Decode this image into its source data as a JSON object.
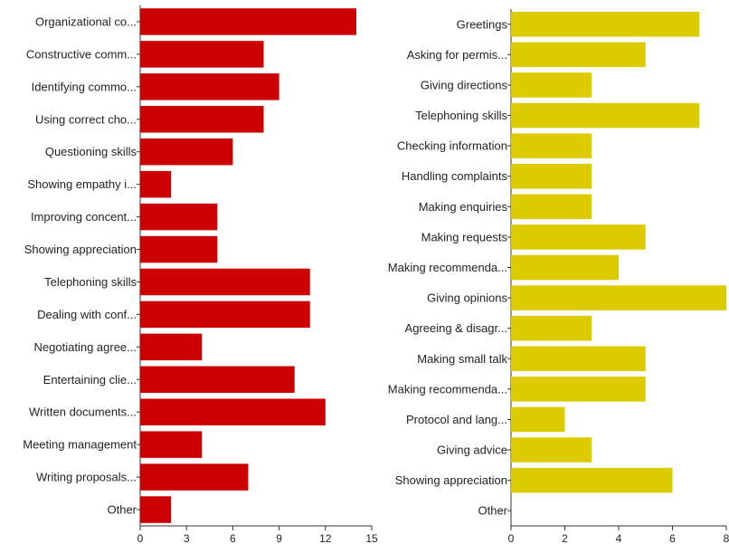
{
  "chart_data": [
    {
      "type": "bar",
      "orientation": "horizontal",
      "color": "#cc0000",
      "categories": [
        "Organizational co...",
        "Constructive comm...",
        "Identifying commo...",
        "Using correct cho...",
        "Questioning skills",
        "Showing empathy i...",
        "Improving concent...",
        "Showing appreciation",
        "Telephoning skills",
        "Dealing with conf...",
        "Negotiating agree...",
        "Entertaining clie...",
        "Written documents...",
        "Meeting management",
        "Writing proposals...",
        "Other"
      ],
      "values": [
        14,
        8,
        9,
        8,
        6,
        2,
        5,
        5,
        11,
        11,
        4,
        10,
        12,
        4,
        7,
        2
      ],
      "xlim": [
        0,
        15
      ],
      "ticks": [
        0,
        3,
        6,
        9,
        12,
        15
      ],
      "grid": false,
      "legend": "none"
    },
    {
      "type": "bar",
      "orientation": "horizontal",
      "color": "#dccb00",
      "categories": [
        "Greetings",
        "Asking for permis...",
        "Giving directions",
        "Telephoning skills",
        "Checking information",
        "Handling complaints",
        "Making enquiries",
        "Making requests",
        "Making recommenda...",
        "Giving opinions",
        "Agreeing & disagr...",
        "Making small talk",
        "Making recommenda...",
        "Protocol and lang...",
        "Giving advice",
        "Showing appreciation",
        "Other"
      ],
      "values": [
        7,
        5,
        3,
        7,
        3,
        3,
        3,
        5,
        4,
        8,
        3,
        5,
        5,
        2,
        3,
        6,
        0
      ],
      "xlim": [
        0,
        8
      ],
      "ticks": [
        0,
        2,
        4,
        6,
        8
      ],
      "grid": false,
      "legend": "none"
    }
  ]
}
